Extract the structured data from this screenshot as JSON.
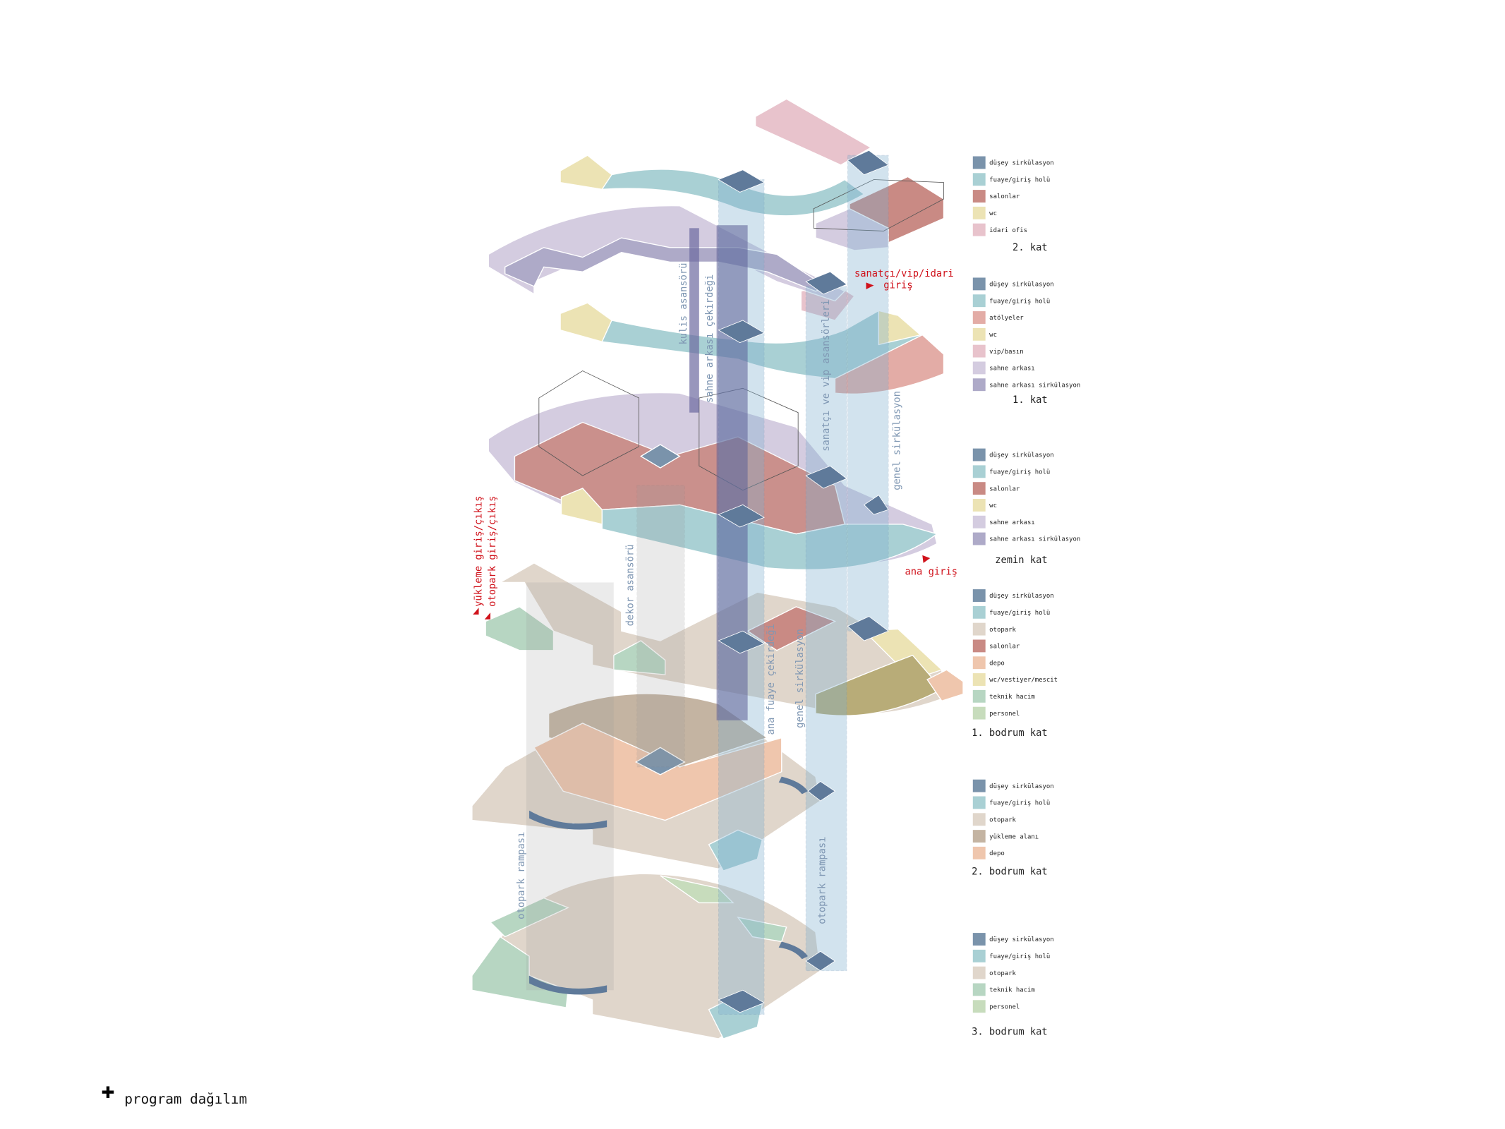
{
  "title": "program dağılım",
  "floors": [
    {
      "name": "2. kat",
      "legend": [
        {
          "label": "düşey sirkülasyon",
          "color": "#7a93ab"
        },
        {
          "label": "fuaye/giriş holü",
          "color": "#a9d0d4"
        },
        {
          "label": "salonlar",
          "color": "#c98a84"
        },
        {
          "label": "wc",
          "color": "#ece3b4"
        },
        {
          "label": "idari ofis",
          "color": "#e8c3cc"
        }
      ]
    },
    {
      "name": "1. kat",
      "legend": [
        {
          "label": "düşey sirkülasyon",
          "color": "#7a93ab"
        },
        {
          "label": "fuaye/giriş holü",
          "color": "#a9d0d4"
        },
        {
          "label": "atölyeler",
          "color": "#e3aca6"
        },
        {
          "label": "wc",
          "color": "#ece3b4"
        },
        {
          "label": "vip/basın",
          "color": "#e8c3cc"
        },
        {
          "label": "sahne arkası",
          "color": "#d4cce0"
        },
        {
          "label": "sahne arkası sirkülasyon",
          "color": "#aeaac8"
        }
      ]
    },
    {
      "name": "zemin kat",
      "legend": [
        {
          "label": "düşey sirkülasyon",
          "color": "#7a93ab"
        },
        {
          "label": "fuaye/giriş holü",
          "color": "#a9d0d4"
        },
        {
          "label": "salonlar",
          "color": "#c98a84"
        },
        {
          "label": "wc",
          "color": "#ece3b4"
        },
        {
          "label": "sahne arkası",
          "color": "#d4cce0"
        },
        {
          "label": "sahne arkası sirkülasyon",
          "color": "#aeaac8"
        }
      ]
    },
    {
      "name": "1. bodrum kat",
      "legend": [
        {
          "label": "düşey sirkülasyon",
          "color": "#7a93ab"
        },
        {
          "label": "fuaye/giriş holü",
          "color": "#a9d0d4"
        },
        {
          "label": "otopark",
          "color": "#e0d6cb"
        },
        {
          "label": "salonlar",
          "color": "#c98a84"
        },
        {
          "label": "depo",
          "color": "#efc6ad"
        },
        {
          "label": "wc/vestiyer/mescit",
          "color": "#ece3b4"
        },
        {
          "label": "teknik hacim",
          "color": "#b7d6c2"
        },
        {
          "label": "personel",
          "color": "#c7dcbc"
        }
      ]
    },
    {
      "name": "2. bodrum kat",
      "legend": [
        {
          "label": "düşey sirkülasyon",
          "color": "#7a93ab"
        },
        {
          "label": "fuaye/giriş holü",
          "color": "#a9d0d4"
        },
        {
          "label": "otopark",
          "color": "#e0d6cb"
        },
        {
          "label": "yükleme alanı",
          "color": "#c4b4a2"
        },
        {
          "label": "depo",
          "color": "#efc6ad"
        }
      ]
    },
    {
      "name": "3. bodrum kat",
      "legend": [
        {
          "label": "düşey sirkülasyon",
          "color": "#7a93ab"
        },
        {
          "label": "fuaye/giriş holü",
          "color": "#a9d0d4"
        },
        {
          "label": "otopark",
          "color": "#e0d6cb"
        },
        {
          "label": "teknik hacim",
          "color": "#b7d6c2"
        },
        {
          "label": "personel",
          "color": "#c7dcbc"
        }
      ]
    }
  ],
  "annotations": {
    "cores": [
      "kulis asansörü",
      "sahne arkası çekirdeği",
      "sanatçı ve vip asansörleri",
      "genel sirkülasyon",
      "dekor asansörü",
      "ana fuaye çekirdeği",
      "genel sirkülasyon",
      "otopark rampası",
      "otopark rampası"
    ],
    "entrances": [
      "yükleme giriş/çıkış",
      "otopark giriş/çıkış",
      "sanatçı/vip/idari",
      "giriş",
      "ana giriş"
    ]
  }
}
